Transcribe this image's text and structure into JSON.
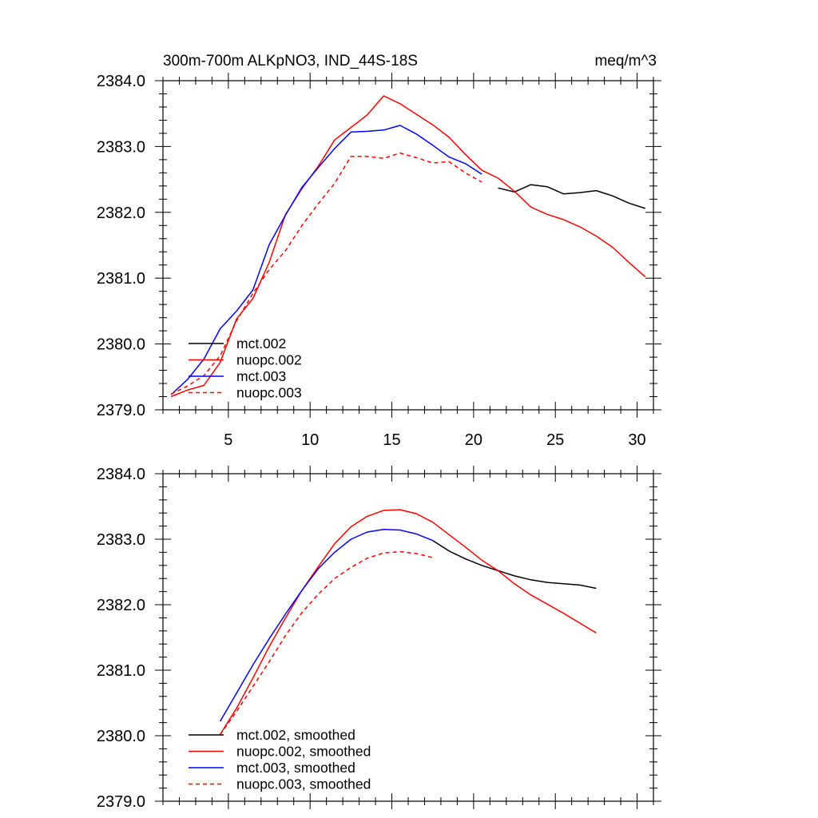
{
  "header": {
    "title_left": "300m-700m ALKpNO3, IND_44S-18S",
    "title_right": "meq/m^3"
  },
  "chart_data": [
    {
      "type": "line",
      "title": "300m-700m ALKpNO3, IND_44S-18S",
      "units": "meq/m^3",
      "xlim": [
        1,
        31
      ],
      "ylim": [
        2379.0,
        2384.0
      ],
      "x_ticks": [
        5,
        10,
        15,
        20,
        25,
        30
      ],
      "y_ticks": [
        2379.0,
        2380.0,
        2381.0,
        2382.0,
        2383.0,
        2384.0
      ],
      "y_tick_labels": [
        "2379.0",
        "2380.0",
        "2381.0",
        "2382.0",
        "2383.0",
        "2384.0"
      ],
      "legend_position": "lower-left",
      "series": [
        {
          "name": "mct.002",
          "color": "#000000",
          "dash": "solid",
          "x": [
            21.5,
            22.5,
            23.5,
            24.5,
            25.5,
            26.5,
            27.5,
            28.5,
            29.5,
            30.5
          ],
          "y": [
            2382.37,
            2382.31,
            2382.42,
            2382.39,
            2382.28,
            2382.3,
            2382.33,
            2382.25,
            2382.14,
            2382.06
          ]
        },
        {
          "name": "nuopc.002",
          "color": "#ff0000",
          "dash": "solid",
          "x": [
            1.5,
            2.5,
            3.5,
            4.5,
            5.5,
            6.5,
            7.5,
            8.5,
            9.5,
            10.5,
            11.5,
            12.5,
            13.5,
            14.5,
            15.5,
            16.5,
            17.5,
            18.5,
            19.5,
            20.5,
            21.5,
            22.5,
            23.5,
            24.5,
            25.5,
            26.5,
            27.5,
            28.5,
            29.5,
            30.5
          ],
          "y": [
            2379.2,
            2379.3,
            2379.37,
            2379.72,
            2380.38,
            2380.69,
            2381.24,
            2381.97,
            2382.36,
            2382.7,
            2383.1,
            2383.29,
            2383.48,
            2383.77,
            2383.65,
            2383.49,
            2383.33,
            2383.14,
            2382.88,
            2382.64,
            2382.52,
            2382.32,
            2382.08,
            2381.97,
            2381.89,
            2381.78,
            2381.64,
            2381.47,
            2381.24,
            2381.02
          ]
        },
        {
          "name": "mct.003",
          "color": "#0000ff",
          "dash": "solid",
          "x": [
            1.5,
            2.5,
            3.5,
            4.5,
            5.5,
            6.5,
            7.5,
            8.5,
            9.5,
            10.5,
            11.5,
            12.5,
            13.5,
            14.5,
            15.5,
            16.5,
            17.5,
            18.5,
            19.5,
            20.5
          ],
          "y": [
            2379.23,
            2379.46,
            2379.77,
            2380.23,
            2380.5,
            2380.82,
            2381.51,
            2381.96,
            2382.38,
            2382.68,
            2382.97,
            2383.22,
            2383.23,
            2383.25,
            2383.32,
            2383.19,
            2383.02,
            2382.84,
            2382.74,
            2382.58
          ]
        },
        {
          "name": "nuopc.003",
          "color": "#ff0000",
          "dash": "dashed",
          "x": [
            1.5,
            2.5,
            3.5,
            4.5,
            5.5,
            6.5,
            7.5,
            8.5,
            9.5,
            10.5,
            11.5,
            12.5,
            13.5,
            14.5,
            15.5,
            16.5,
            17.5,
            18.5,
            19.5,
            20.5
          ],
          "y": [
            2379.24,
            2379.36,
            2379.52,
            2379.82,
            2380.35,
            2380.77,
            2381.13,
            2381.42,
            2381.8,
            2382.13,
            2382.44,
            2382.85,
            2382.85,
            2382.82,
            2382.9,
            2382.83,
            2382.75,
            2382.77,
            2382.6,
            2382.46
          ]
        }
      ]
    },
    {
      "type": "line",
      "xlim": [
        1,
        31
      ],
      "ylim": [
        2379.0,
        2384.0
      ],
      "x_ticks": [
        5,
        10,
        15,
        20,
        25,
        30
      ],
      "y_ticks": [
        2379.0,
        2380.0,
        2381.0,
        2382.0,
        2383.0,
        2384.0
      ],
      "y_tick_labels": [
        "2379.0",
        "2380.0",
        "2381.0",
        "2382.0",
        "2383.0",
        "2384.0"
      ],
      "legend_position": "lower-left",
      "series": [
        {
          "name": "mct.002, smoothed",
          "color": "#000000",
          "dash": "solid",
          "x": [
            17.5,
            18.5,
            19.5,
            20.5,
            21.5,
            22.5,
            23.5,
            24.5,
            25.5,
            26.5,
            27.5
          ],
          "y": [
            2382.98,
            2382.82,
            2382.7,
            2382.6,
            2382.52,
            2382.44,
            2382.38,
            2382.34,
            2382.32,
            2382.3,
            2382.25
          ]
        },
        {
          "name": "nuopc.002, smoothed",
          "color": "#ff0000",
          "dash": "solid",
          "x": [
            4.5,
            5.5,
            6.5,
            7.5,
            8.5,
            9.5,
            10.5,
            11.5,
            12.5,
            13.5,
            14.5,
            15.5,
            16.5,
            17.5,
            18.5,
            19.5,
            20.5,
            21.5,
            22.5,
            23.5,
            24.5,
            25.5,
            26.5,
            27.5
          ],
          "y": [
            2380.02,
            2380.42,
            2380.88,
            2381.36,
            2381.8,
            2382.22,
            2382.58,
            2382.93,
            2383.19,
            2383.35,
            2383.44,
            2383.45,
            2383.39,
            2383.26,
            2383.07,
            2382.88,
            2382.68,
            2382.52,
            2382.32,
            2382.15,
            2382.01,
            2381.87,
            2381.72,
            2381.57
          ]
        },
        {
          "name": "mct.003, smoothed",
          "color": "#0000ff",
          "dash": "solid",
          "x": [
            4.5,
            5.5,
            6.5,
            7.5,
            8.5,
            9.5,
            10.5,
            11.5,
            12.5,
            13.5,
            14.5,
            15.5,
            16.5,
            17.5
          ],
          "y": [
            2380.22,
            2380.65,
            2381.08,
            2381.48,
            2381.86,
            2382.22,
            2382.55,
            2382.8,
            2383.0,
            2383.11,
            2383.15,
            2383.14,
            2383.08,
            2382.98
          ]
        },
        {
          "name": "nuopc.003, smoothed",
          "color": "#ff0000",
          "dash": "dashed",
          "x": [
            4.5,
            5.5,
            6.5,
            7.5,
            8.5,
            9.5,
            10.5,
            11.5,
            12.5,
            13.5,
            14.5,
            15.5,
            16.5,
            17.5
          ],
          "y": [
            2380.02,
            2380.37,
            2380.75,
            2381.13,
            2381.53,
            2381.88,
            2382.16,
            2382.4,
            2382.57,
            2382.71,
            2382.79,
            2382.81,
            2382.78,
            2382.72
          ]
        }
      ]
    }
  ]
}
